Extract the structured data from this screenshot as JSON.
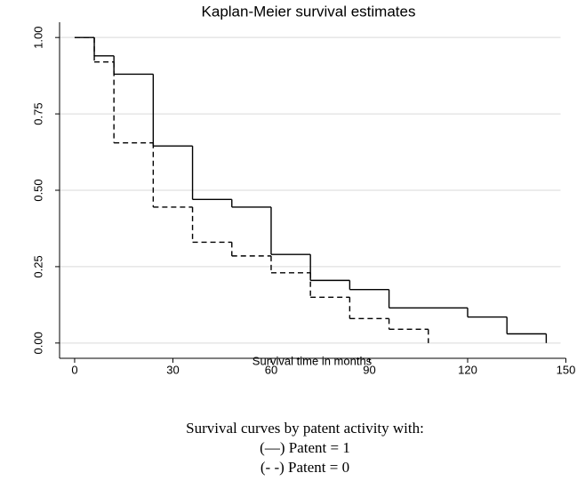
{
  "chart_data": {
    "type": "step",
    "title": "Kaplan-Meier survival estimates",
    "x_label": "Survival time in months",
    "caption": "Survival curves by patent activity with:",
    "series": [
      {
        "name": "(—) Patent = 1",
        "color": "#000000",
        "dash": "none",
        "x": [
          0,
          6,
          12,
          24,
          36,
          48,
          60,
          72,
          84,
          96,
          120,
          132,
          144
        ],
        "values": [
          1.0,
          0.94,
          0.88,
          0.645,
          0.47,
          0.445,
          0.29,
          0.205,
          0.175,
          0.115,
          0.085,
          0.03,
          0.0
        ]
      },
      {
        "name": "(- -) Patent = 0",
        "color": "#000000",
        "dash": "6,4",
        "x": [
          0,
          6,
          12,
          24,
          36,
          48,
          60,
          72,
          84,
          96,
          108
        ],
        "values": [
          1.0,
          0.92,
          0.655,
          0.445,
          0.33,
          0.285,
          0.23,
          0.15,
          0.08,
          0.045,
          0.0
        ]
      }
    ],
    "xlim": [
      -4.6,
      150
    ],
    "xticks": [
      0,
      30,
      60,
      90,
      120,
      150
    ],
    "ylim": [
      -0.05,
      1.05
    ],
    "yticks": [
      {
        "value": 0,
        "label": "0.00"
      },
      {
        "value": 0.25,
        "label": "0.25"
      },
      {
        "value": 0.5,
        "label": "0.50"
      },
      {
        "value": 0.75,
        "label": "0.75"
      },
      {
        "value": 1,
        "label": "1.00"
      }
    ],
    "grid": true
  }
}
